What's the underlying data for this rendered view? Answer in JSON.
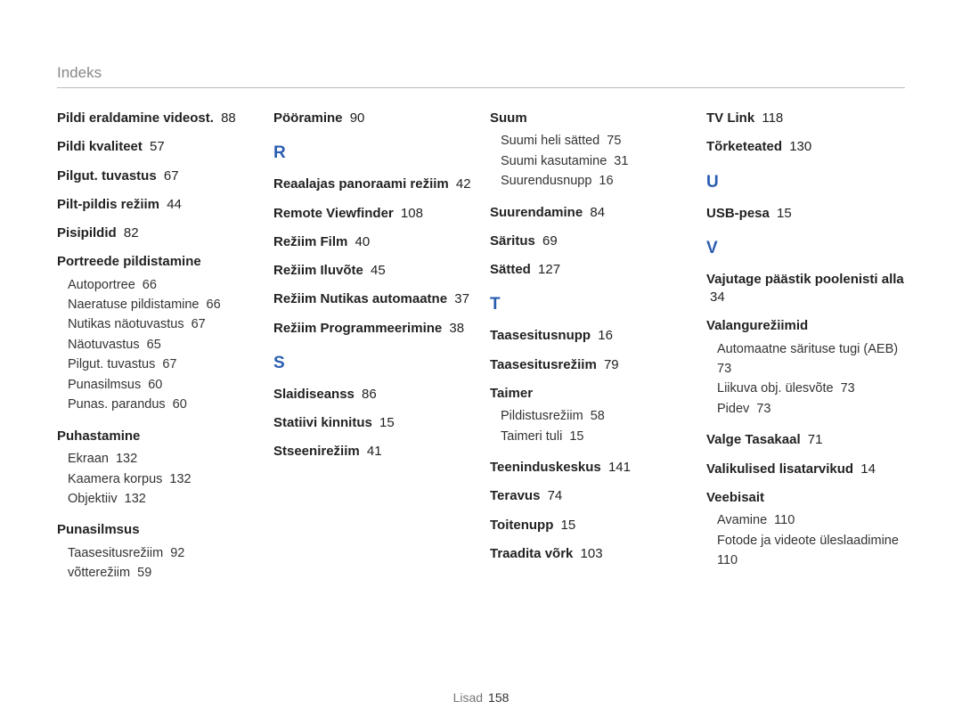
{
  "header": "Indeks",
  "footer": {
    "label": "Lisad",
    "page": "158"
  },
  "columns": [
    [
      {
        "type": "bold",
        "label": "Pildi eraldamine videost.",
        "page": "88"
      },
      {
        "type": "bold",
        "label": "Pildi kvaliteet",
        "page": "57"
      },
      {
        "type": "bold",
        "label": "Pilgut. tuvastus",
        "page": "67"
      },
      {
        "type": "bold",
        "label": "Pilt-pildis režiim",
        "page": "44"
      },
      {
        "type": "bold",
        "label": "Pisipildid",
        "page": "82"
      },
      {
        "type": "group",
        "head": "Portreede pildistamine",
        "items": [
          {
            "label": "Autoportree",
            "page": "66"
          },
          {
            "label": "Naeratuse pildistamine",
            "page": "66"
          },
          {
            "label": "Nutikas näotuvastus",
            "page": "67"
          },
          {
            "label": "Näotuvastus",
            "page": "65"
          },
          {
            "label": "Pilgut. tuvastus",
            "page": "67"
          },
          {
            "label": "Punasilmsus",
            "page": "60"
          },
          {
            "label": "Punas. parandus",
            "page": "60"
          }
        ]
      },
      {
        "type": "group",
        "head": "Puhastamine",
        "items": [
          {
            "label": "Ekraan",
            "page": "132"
          },
          {
            "label": "Kaamera korpus",
            "page": "132"
          },
          {
            "label": "Objektiiv",
            "page": "132"
          }
        ]
      },
      {
        "type": "group",
        "head": "Punasilmsus",
        "items": [
          {
            "label": "Taasesitusrežiim",
            "page": "92"
          },
          {
            "label": "võtterežiim",
            "page": "59"
          }
        ]
      }
    ],
    [
      {
        "type": "bold",
        "label": "Pööramine",
        "page": "90"
      },
      {
        "type": "letter",
        "label": "R"
      },
      {
        "type": "bold",
        "label": "Reaalajas panoraami režiim",
        "page": "42"
      },
      {
        "type": "bold",
        "label": "Remote Viewfinder",
        "page": "108"
      },
      {
        "type": "bold",
        "label": "Režiim Film",
        "page": "40"
      },
      {
        "type": "bold",
        "label": "Režiim Iluvõte",
        "page": "45"
      },
      {
        "type": "bold",
        "label": "Režiim Nutikas automaatne",
        "page": "37"
      },
      {
        "type": "bold",
        "label": "Režiim Programmeerimine",
        "page": "38"
      },
      {
        "type": "letter",
        "label": "S"
      },
      {
        "type": "bold",
        "label": "Slaidiseanss",
        "page": "86"
      },
      {
        "type": "bold",
        "label": "Statiivi kinnitus",
        "page": "15"
      },
      {
        "type": "bold",
        "label": "Stseenirežiim",
        "page": "41"
      }
    ],
    [
      {
        "type": "group",
        "head": "Suum",
        "items": [
          {
            "label": "Suumi heli sätted",
            "page": "75"
          },
          {
            "label": "Suumi kasutamine",
            "page": "31"
          },
          {
            "label": "Suurendusnupp",
            "page": "16"
          }
        ]
      },
      {
        "type": "bold",
        "label": "Suurendamine",
        "page": "84"
      },
      {
        "type": "bold",
        "label": "Säritus",
        "page": "69"
      },
      {
        "type": "bold",
        "label": "Sätted",
        "page": "127"
      },
      {
        "type": "letter",
        "label": "T"
      },
      {
        "type": "bold",
        "label": "Taasesitusnupp",
        "page": "16"
      },
      {
        "type": "bold",
        "label": "Taasesitusrežiim",
        "page": "79"
      },
      {
        "type": "group",
        "head": "Taimer",
        "items": [
          {
            "label": "Pildistusrežiim",
            "page": "58"
          },
          {
            "label": "Taimeri tuli",
            "page": "15"
          }
        ]
      },
      {
        "type": "bold",
        "label": "Teeninduskeskus",
        "page": "141"
      },
      {
        "type": "bold",
        "label": "Teravus",
        "page": "74"
      },
      {
        "type": "bold",
        "label": "Toitenupp",
        "page": "15"
      },
      {
        "type": "bold",
        "label": "Traadita võrk",
        "page": "103"
      }
    ],
    [
      {
        "type": "bold",
        "label": "TV Link",
        "page": "118"
      },
      {
        "type": "bold",
        "label": "Tõrketeated",
        "page": "130"
      },
      {
        "type": "letter",
        "label": "U"
      },
      {
        "type": "bold",
        "label": "USB-pesa",
        "page": "15"
      },
      {
        "type": "letter",
        "label": "V"
      },
      {
        "type": "bold",
        "label": "Vajutage päästik poolenisti alla",
        "page": "34"
      },
      {
        "type": "group",
        "head": "Valangurežiimid",
        "items": [
          {
            "label": "Automaatne särituse tugi (AEB)",
            "page": "73"
          },
          {
            "label": "Liikuva obj. ülesvõte",
            "page": "73"
          },
          {
            "label": "Pidev",
            "page": "73"
          }
        ]
      },
      {
        "type": "bold",
        "label": "Valge Tasakaal",
        "page": "71"
      },
      {
        "type": "bold",
        "label": "Valikulised lisatarvikud",
        "page": "14"
      },
      {
        "type": "group",
        "head": "Veebisait",
        "items": [
          {
            "label": "Avamine",
            "page": "110"
          },
          {
            "label": "Fotode ja videote üleslaadimine",
            "page": "110"
          }
        ]
      }
    ]
  ]
}
